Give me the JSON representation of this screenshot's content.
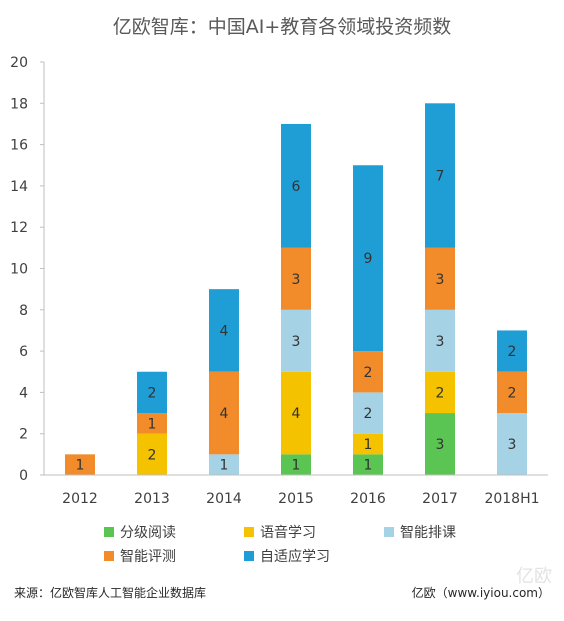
{
  "title": "亿欧智库：中国AI+教育各领域投资频数",
  "source": "来源：亿欧智库人工智能企业数据库",
  "credit": "亿欧（www.iyiou.com）",
  "watermark": "亿欧",
  "chart_data": {
    "type": "bar",
    "stacked": true,
    "title": "亿欧智库：中国AI+教育各领域投资频数",
    "categories": [
      "2012",
      "2013",
      "2014",
      "2015",
      "2016",
      "2017",
      "2018H1"
    ],
    "ylim": [
      0,
      20
    ],
    "yticks": [
      0,
      2,
      4,
      6,
      8,
      10,
      12,
      14,
      16,
      18,
      20
    ],
    "grid": false,
    "legend_position": "bottom",
    "series": [
      {
        "name": "分级阅读",
        "color": "#5bc553",
        "values": [
          0,
          0,
          0,
          1,
          1,
          3,
          0
        ]
      },
      {
        "name": "语音学习",
        "color": "#f5c200",
        "values": [
          0,
          2,
          0,
          4,
          1,
          2,
          0
        ]
      },
      {
        "name": "智能排课",
        "color": "#a6d2e6",
        "values": [
          0,
          0,
          1,
          3,
          2,
          3,
          3
        ]
      },
      {
        "name": "智能评测",
        "color": "#f28b2a",
        "values": [
          1,
          1,
          4,
          3,
          2,
          3,
          2
        ]
      },
      {
        "name": "自适应学习",
        "color": "#1f9ed6",
        "values": [
          0,
          2,
          4,
          6,
          9,
          7,
          2
        ]
      }
    ]
  }
}
